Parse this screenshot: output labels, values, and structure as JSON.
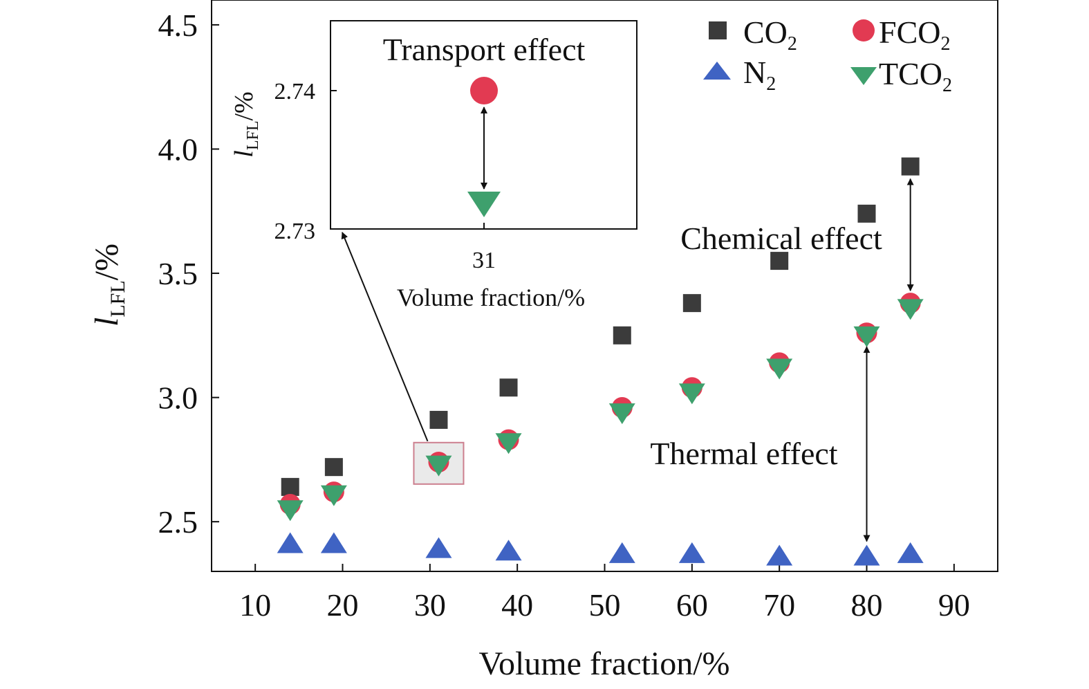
{
  "chart_data": {
    "type": "scatter",
    "xlabel": "Volume fraction/%",
    "ylabel": {
      "main": "l",
      "sub": "LFL",
      "tail": "/%"
    },
    "xlim": [
      5,
      95
    ],
    "ylim": [
      2.3,
      4.6
    ],
    "xticks": [
      "10",
      "20",
      "30",
      "40",
      "50",
      "60",
      "70",
      "80",
      "90"
    ],
    "yticks": [
      "2.5",
      "3.0",
      "3.5",
      "4.0",
      "4.5"
    ],
    "series": [
      {
        "name": "CO",
        "sub": "2",
        "marker": "square",
        "color": "#3b3b3b",
        "x": [
          14,
          19,
          31,
          39,
          52,
          60,
          70,
          80,
          85
        ],
        "y": [
          2.64,
          2.72,
          2.91,
          3.04,
          3.25,
          3.38,
          3.55,
          3.74,
          3.93
        ]
      },
      {
        "name": "N",
        "sub": "2",
        "marker": "triangle-up",
        "color": "#3f63c3",
        "x": [
          14,
          19,
          31,
          39,
          52,
          60,
          70,
          80,
          85
        ],
        "y": [
          2.41,
          2.41,
          2.39,
          2.38,
          2.37,
          2.37,
          2.36,
          2.36,
          2.37
        ]
      },
      {
        "name": "FCO",
        "sub": "2",
        "marker": "circle",
        "color": "#e23a52",
        "x": [
          14,
          19,
          31,
          39,
          52,
          60,
          70,
          80,
          85
        ],
        "y": [
          2.57,
          2.62,
          2.74,
          2.83,
          2.96,
          3.04,
          3.14,
          3.26,
          3.38
        ]
      },
      {
        "name": "TCO",
        "sub": "2",
        "marker": "triangle-down",
        "color": "#3ea06d",
        "x": [
          14,
          19,
          31,
          39,
          52,
          60,
          70,
          80,
          85
        ],
        "y": [
          2.55,
          2.61,
          2.73,
          2.82,
          2.94,
          3.02,
          3.12,
          3.25,
          3.36
        ]
      }
    ],
    "legend": "top-right",
    "annotations": [
      {
        "text": "Chemical effect",
        "x": 85,
        "y_from": 3.93,
        "y_to": 3.38
      },
      {
        "text": "Thermal effect",
        "x": 80,
        "y_from": 3.26,
        "y_to": 2.36
      }
    ],
    "highlight": {
      "x": 31,
      "y": 2.735
    },
    "inset": {
      "title": "Transport effect",
      "xlabel": "Volume fraction/%",
      "ylabel": {
        "main": "l",
        "sub": "LFL",
        "tail": "/%"
      },
      "xticks": [
        "31"
      ],
      "yticks": [
        "2.73",
        "2.74"
      ],
      "ylim": [
        2.73,
        2.74
      ],
      "points": [
        {
          "series": "FCO2",
          "marker": "circle",
          "color": "#e23a52",
          "x": 31,
          "y": 2.74
        },
        {
          "series": "TCO2",
          "marker": "triangle-down",
          "color": "#3ea06d",
          "x": 31,
          "y": 2.7319
        }
      ]
    }
  }
}
